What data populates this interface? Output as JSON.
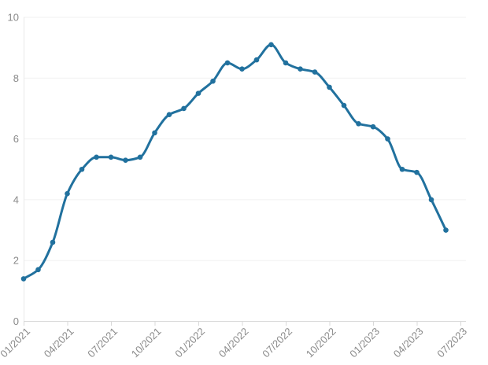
{
  "page": {
    "background": "#ffffff"
  },
  "chart": {
    "colors": {
      "line": "#21719e",
      "marker": "#21719e",
      "grid": "#f1f1f1",
      "x_axis": "#d9d9d9",
      "y_axis": "#e9e9e9",
      "tick": "#d9d9d9",
      "label": "#8a8a8a"
    }
  },
  "chart_data": {
    "type": "line",
    "title": "",
    "xlabel": "",
    "ylabel": "",
    "legend": "none",
    "grid": "horizontal",
    "smooth": true,
    "markers": "circle",
    "ylim": [
      0,
      10
    ],
    "y_ticks": [
      0,
      2,
      4,
      6,
      8,
      10
    ],
    "x": [
      "01/2021",
      "02/2021",
      "03/2021",
      "04/2021",
      "05/2021",
      "06/2021",
      "07/2021",
      "08/2021",
      "09/2021",
      "10/2021",
      "11/2021",
      "12/2021",
      "01/2022",
      "02/2022",
      "03/2022",
      "04/2022",
      "05/2022",
      "06/2022",
      "07/2022",
      "08/2022",
      "09/2022",
      "10/2022",
      "11/2022",
      "12/2022",
      "01/2023",
      "02/2023",
      "03/2023",
      "04/2023",
      "05/2023",
      "06/2023"
    ],
    "values": [
      1.4,
      1.7,
      2.6,
      4.2,
      5.0,
      5.4,
      5.4,
      5.3,
      5.4,
      6.2,
      6.8,
      7.0,
      7.5,
      7.9,
      8.5,
      8.3,
      8.6,
      9.1,
      8.5,
      8.3,
      8.2,
      7.7,
      7.1,
      6.5,
      6.4,
      6.0,
      5.0,
      4.9,
      4.0,
      3.0
    ],
    "x_ticks": [
      {
        "i": 0,
        "label": "01/2021"
      },
      {
        "i": 3,
        "label": "04/2021"
      },
      {
        "i": 6,
        "label": "07/2021"
      },
      {
        "i": 9,
        "label": "10/2021"
      },
      {
        "i": 12,
        "label": "01/2022"
      },
      {
        "i": 15,
        "label": "04/2022"
      },
      {
        "i": 18,
        "label": "07/2022"
      },
      {
        "i": 21,
        "label": "10/2022"
      },
      {
        "i": 24,
        "label": "01/2023"
      },
      {
        "i": 27,
        "label": "04/2023"
      },
      {
        "i": 30,
        "label": "07/2023"
      }
    ]
  }
}
